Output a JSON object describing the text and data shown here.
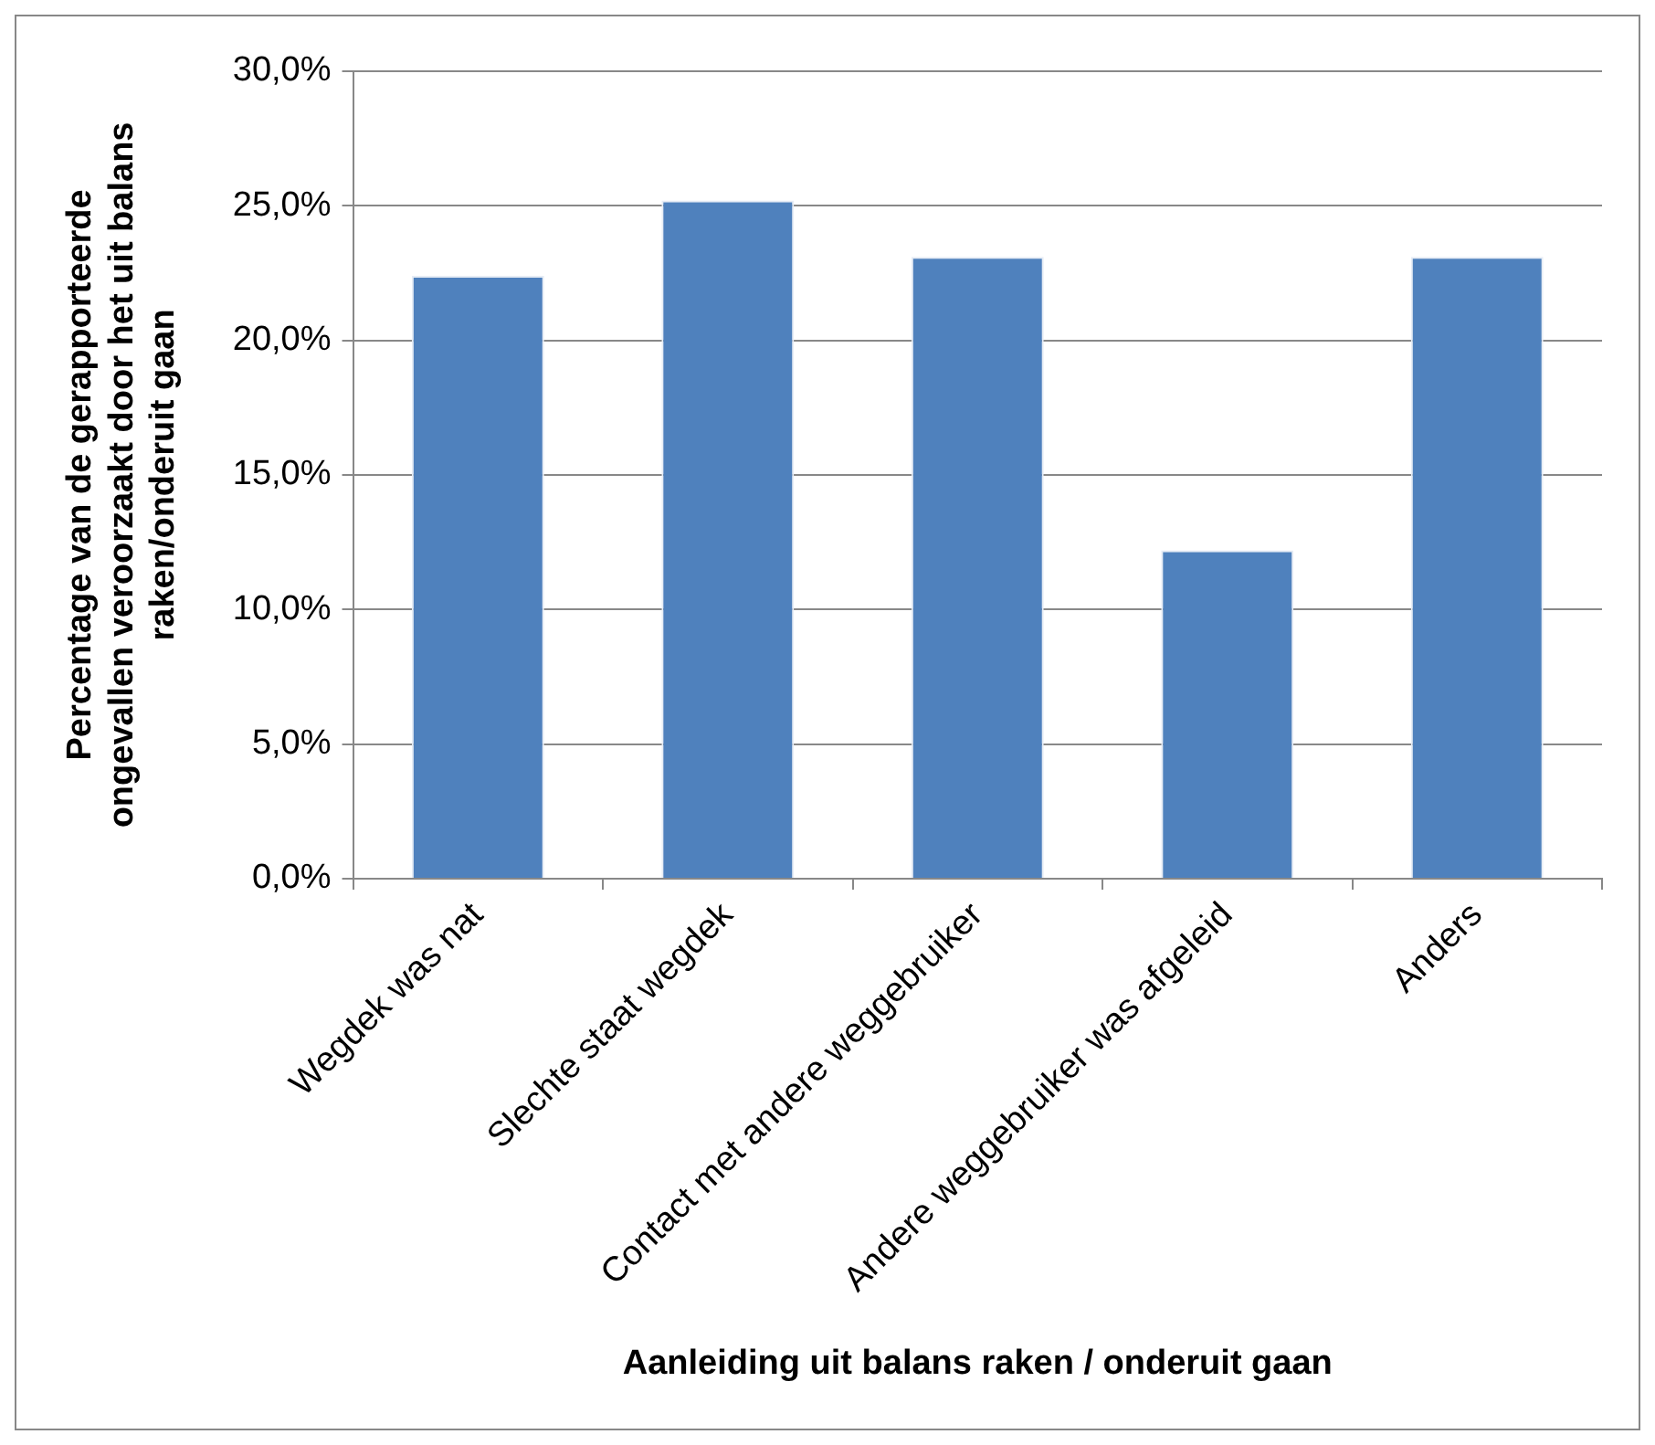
{
  "chart_data": {
    "type": "bar",
    "xlabel": "Aanleiding uit balans raken / onderuit gaan",
    "ylabel": "Percentage van de gerapporteerde ongevallen veroorzaakt door het uit balans raken/onderuit gaan",
    "categories": [
      "Wegdek was nat",
      "Slechte staat wegdek",
      "Contact met andere weggebruiker",
      "Andere weggebruiker was afgeleid",
      "Anders"
    ],
    "values": [
      22.4,
      25.2,
      23.1,
      12.2,
      23.1
    ],
    "color": "#4f81bd",
    "ylim": [
      0,
      30
    ],
    "yticks": [
      {
        "value": 0,
        "label": "0,0%"
      },
      {
        "value": 5,
        "label": "5,0%"
      },
      {
        "value": 10,
        "label": "10,0%"
      },
      {
        "value": 15,
        "label": "15,0%"
      },
      {
        "value": 20,
        "label": "20,0%"
      },
      {
        "value": 25,
        "label": "25,0%"
      },
      {
        "value": 30,
        "label": "30,0%"
      }
    ],
    "grid": "y",
    "legend": false
  }
}
